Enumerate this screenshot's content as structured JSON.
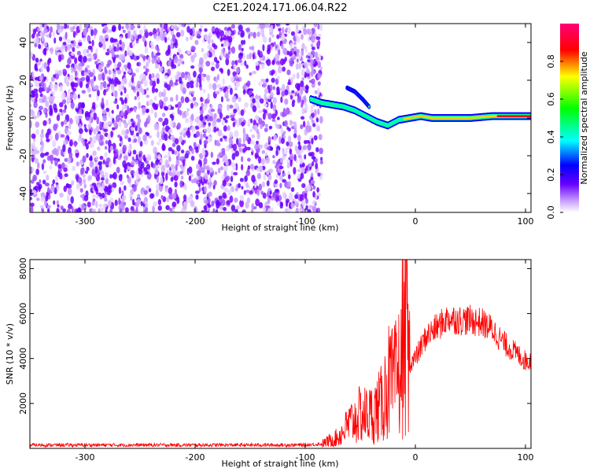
{
  "title": "C2E1.2024.171.06.04.R22",
  "chart_data": [
    {
      "type": "heatmap",
      "xlabel": "Height of straight line (km)",
      "ylabel": "Frequency (Hz)",
      "xlim": [
        -350,
        105
      ],
      "ylim": [
        -50,
        50
      ],
      "xticks": [
        -300,
        -200,
        -100,
        0,
        100
      ],
      "yticks": [
        -40,
        -20,
        0,
        20,
        40
      ],
      "noise_region_x": [
        -350,
        -85
      ],
      "ridge": {
        "x": [
          -95,
          -85,
          -75,
          -65,
          -55,
          -45,
          -35,
          -25,
          -15,
          -5,
          5,
          15,
          30,
          50,
          70,
          90,
          105
        ],
        "freq": [
          10,
          8,
          7,
          6,
          4,
          1,
          -2,
          -4,
          -1,
          0,
          1,
          0,
          0,
          0,
          1,
          1,
          1
        ]
      },
      "secondary_ridge": {
        "x": [
          -62,
          -55,
          -48,
          -42
        ],
        "freq": [
          16,
          14,
          10,
          6
        ]
      },
      "colorbar": {
        "label": "Normalized spectral amplitude",
        "range": [
          0.0,
          1.0
        ],
        "ticks": [
          "0.0",
          "0.2",
          "0.4",
          "0.6",
          "0.8"
        ]
      }
    },
    {
      "type": "line",
      "xlabel": "Height of straight line (km)",
      "ylabel": "SNR (10 * v/v)",
      "xlim": [
        -350,
        105
      ],
      "ylim": [
        0,
        8400
      ],
      "xticks": [
        -300,
        -200,
        -100,
        0,
        100
      ],
      "yticks": [
        2000,
        4000,
        6000,
        8000
      ],
      "series": [
        {
          "color": "#ff0000",
          "x": [
            -350,
            -100,
            -85,
            -70,
            -60,
            -50,
            -40,
            -30,
            -25,
            -20,
            -15,
            -10,
            -5,
            0,
            10,
            20,
            30,
            40,
            50,
            60,
            70,
            80,
            90,
            100,
            105
          ],
          "value": [
            150,
            150,
            200,
            500,
            1100,
            1500,
            1500,
            2000,
            3000,
            2800,
            3400,
            4000,
            3800,
            4000,
            5000,
            5400,
            5800,
            5700,
            5700,
            5600,
            5300,
            4700,
            4300,
            3900,
            3900
          ]
        }
      ]
    }
  ]
}
